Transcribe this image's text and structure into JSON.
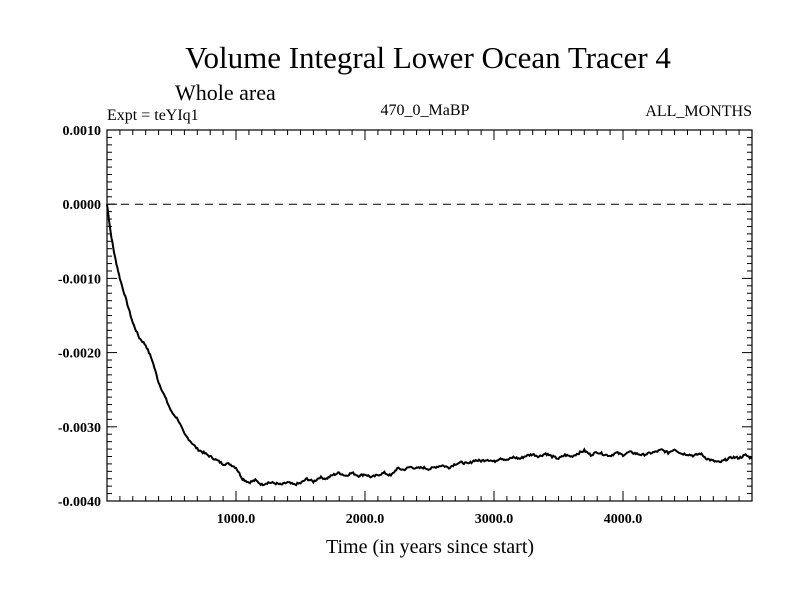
{
  "chart_data": {
    "type": "line",
    "title": "Volume Integral Lower Ocean Tracer 4",
    "subtitle": "Whole area",
    "experiment": "Expt = teYIq1",
    "period": "470_0_MaBP",
    "months": "ALL_MONTHS",
    "xlabel": "Time (in years since start)",
    "ylabel": "",
    "xlim": [
      0,
      5000
    ],
    "ylim": [
      -0.004,
      0.001
    ],
    "x_ticks": [
      1000,
      2000,
      3000,
      4000
    ],
    "x_tick_labels": [
      "1000.0",
      "2000.0",
      "3000.0",
      "4000.0"
    ],
    "y_ticks": [
      0.001,
      0.0,
      -0.001,
      -0.002,
      -0.003,
      -0.004
    ],
    "y_tick_labels": [
      "0.0010",
      "0.0000",
      "-0.0010",
      "-0.0020",
      "-0.0030",
      "-0.0040"
    ],
    "reference_line": 0.0,
    "series": [
      {
        "name": "Volume Integral Lower Ocean Tracer 4",
        "x": [
          0,
          30,
          60,
          100,
          150,
          200,
          250,
          300,
          350,
          400,
          450,
          500,
          550,
          600,
          650,
          700,
          750,
          800,
          850,
          900,
          950,
          1000,
          1050,
          1100,
          1150,
          1200,
          1250,
          1300,
          1350,
          1400,
          1450,
          1500,
          1550,
          1600,
          1650,
          1700,
          1750,
          1800,
          1850,
          1900,
          1950,
          2000,
          2050,
          2100,
          2150,
          2200,
          2250,
          2300,
          2350,
          2400,
          2450,
          2500,
          2550,
          2600,
          2650,
          2700,
          2750,
          2800,
          2850,
          2900,
          2950,
          3000,
          3050,
          3100,
          3150,
          3200,
          3250,
          3300,
          3350,
          3400,
          3450,
          3500,
          3550,
          3600,
          3650,
          3700,
          3750,
          3800,
          3850,
          3900,
          3950,
          4000,
          4050,
          4100,
          4150,
          4200,
          4250,
          4300,
          4350,
          4400,
          4450,
          4500,
          4550,
          4600,
          4650,
          4700,
          4750,
          4800,
          4850,
          4900,
          4950,
          5000
        ],
        "values": [
          0.0,
          -0.0004,
          -0.0007,
          -0.001,
          -0.0013,
          -0.0016,
          -0.0018,
          -0.0019,
          -0.0021,
          -0.0024,
          -0.0026,
          -0.0028,
          -0.0029,
          -0.0031,
          -0.0032,
          -0.0033,
          -0.00335,
          -0.0034,
          -0.00345,
          -0.0035,
          -0.0035,
          -0.00355,
          -0.0037,
          -0.00375,
          -0.00372,
          -0.00378,
          -0.00375,
          -0.00376,
          -0.00378,
          -0.00375,
          -0.00378,
          -0.00376,
          -0.0037,
          -0.00374,
          -0.00368,
          -0.0037,
          -0.00365,
          -0.00362,
          -0.00366,
          -0.00362,
          -0.00366,
          -0.00364,
          -0.00368,
          -0.00365,
          -0.00362,
          -0.00366,
          -0.00356,
          -0.00358,
          -0.00354,
          -0.00356,
          -0.00355,
          -0.00357,
          -0.00354,
          -0.00352,
          -0.00355,
          -0.0035,
          -0.00348,
          -0.0035,
          -0.00345,
          -0.00346,
          -0.00344,
          -0.00347,
          -0.00342,
          -0.00345,
          -0.00341,
          -0.00343,
          -0.00339,
          -0.00337,
          -0.0034,
          -0.00336,
          -0.0034,
          -0.00343,
          -0.00338,
          -0.0034,
          -0.00336,
          -0.00332,
          -0.00338,
          -0.00334,
          -0.00337,
          -0.00339,
          -0.00335,
          -0.00338,
          -0.00334,
          -0.00336,
          -0.00338,
          -0.00336,
          -0.00334,
          -0.00331,
          -0.00335,
          -0.0033,
          -0.00336,
          -0.00337,
          -0.00339,
          -0.00336,
          -0.00343,
          -0.00346,
          -0.00348,
          -0.00344,
          -0.00341,
          -0.00342,
          -0.00338,
          -0.00343
        ]
      }
    ]
  }
}
